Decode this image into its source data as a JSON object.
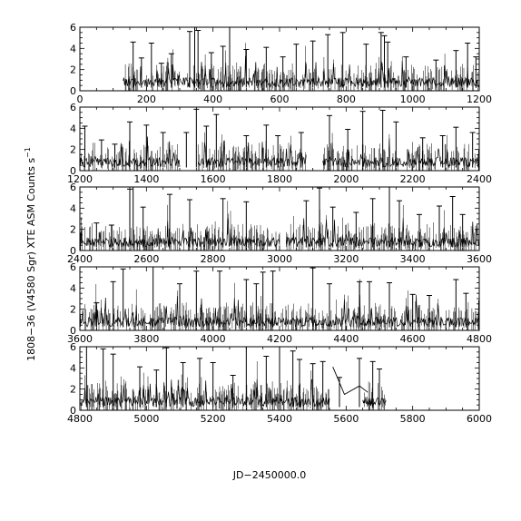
{
  "chart_data": {
    "type": "line",
    "ylabel": "1808−36 (V4580 Sgr) XTE ASM Counts s",
    "ylabel_superscript": "−1",
    "xlabel": "JD−2450000.0",
    "ylim": [
      0,
      6
    ],
    "yticks": [
      "0",
      "2",
      "4",
      "6"
    ],
    "error_bars": true,
    "grid": false,
    "color": "#000000",
    "panels": [
      {
        "xlim": [
          0,
          1200
        ],
        "xticks": [
          "0",
          "200",
          "400",
          "600",
          "800",
          "1000",
          "1200"
        ],
        "segments": [
          [
            130,
            1200
          ]
        ],
        "spikes": [
          [
            160,
            4.6
          ],
          [
            185,
            3.1
          ],
          [
            215,
            4.5
          ],
          [
            245,
            2.6
          ],
          [
            275,
            3.5
          ],
          [
            330,
            5.6
          ],
          [
            345,
            6
          ],
          [
            355,
            5.7
          ],
          [
            395,
            3.6
          ],
          [
            430,
            4.2
          ],
          [
            450,
            6
          ],
          [
            500,
            3.9
          ],
          [
            560,
            4.1
          ],
          [
            610,
            3.2
          ],
          [
            650,
            4.4
          ],
          [
            700,
            4.7
          ],
          [
            745,
            5.3
          ],
          [
            790,
            5.5
          ],
          [
            860,
            4.4
          ],
          [
            905,
            5.5
          ],
          [
            915,
            5.2
          ],
          [
            925,
            4.6
          ],
          [
            980,
            3.2
          ],
          [
            1070,
            2.9
          ],
          [
            1130,
            3.8
          ],
          [
            1165,
            4.5
          ],
          [
            1190,
            3.2
          ]
        ]
      },
      {
        "xlim": [
          1200,
          2400
        ],
        "xticks": [
          "1200",
          "1400",
          "1600",
          "1800",
          "2000",
          "2200",
          "2400"
        ],
        "segments": [
          [
            1200,
            1500
          ],
          [
            1555,
            1880
          ],
          [
            1930,
            2400
          ]
        ],
        "spikes": [
          [
            1215,
            4.2
          ],
          [
            1265,
            2.9
          ],
          [
            1305,
            2.5
          ],
          [
            1350,
            4.6
          ],
          [
            1400,
            4.3
          ],
          [
            1450,
            3.6
          ],
          [
            1520,
            3.6
          ],
          [
            1550,
            5.8
          ],
          [
            1580,
            4.2
          ],
          [
            1610,
            5.3
          ],
          [
            1700,
            3.3
          ],
          [
            1760,
            4.3
          ],
          [
            1795,
            3.3
          ],
          [
            1865,
            3.6
          ],
          [
            1950,
            5.2
          ],
          [
            2005,
            3.9
          ],
          [
            2050,
            5.6
          ],
          [
            2110,
            5.7
          ],
          [
            2150,
            4.6
          ],
          [
            2230,
            3.1
          ],
          [
            2290,
            3.3
          ],
          [
            2330,
            4.1
          ],
          [
            2380,
            3.6
          ]
        ]
      },
      {
        "xlim": [
          2400,
          3600
        ],
        "xticks": [
          "2400",
          "2600",
          "2800",
          "3000",
          "3200",
          "3400",
          "3600"
        ],
        "segments": [
          [
            2400,
            3000
          ],
          [
            3020,
            3600
          ]
        ],
        "spikes": [
          [
            2450,
            2.6
          ],
          [
            2495,
            2.4
          ],
          [
            2550,
            5.8
          ],
          [
            2560,
            6
          ],
          [
            2590,
            4.1
          ],
          [
            2670,
            5.3
          ],
          [
            2730,
            4.8
          ],
          [
            2830,
            4.9
          ],
          [
            2900,
            4.6
          ],
          [
            3080,
            4.7
          ],
          [
            3120,
            5.9
          ],
          [
            3160,
            4.1
          ],
          [
            3230,
            3.6
          ],
          [
            3280,
            4.9
          ],
          [
            3330,
            6
          ],
          [
            3360,
            4.7
          ],
          [
            3420,
            3.4
          ],
          [
            3480,
            4.2
          ],
          [
            3520,
            5.1
          ],
          [
            3550,
            3.4
          ]
        ]
      },
      {
        "xlim": [
          3600,
          4800
        ],
        "xticks": [
          "3600",
          "3800",
          "4000",
          "4200",
          "4400",
          "4600",
          "4800"
        ],
        "segments": [
          [
            3600,
            4800
          ]
        ],
        "spikes": [
          [
            3650,
            2.6
          ],
          [
            3700,
            4.6
          ],
          [
            3730,
            5.8
          ],
          [
            3820,
            6
          ],
          [
            3900,
            4.4
          ],
          [
            3950,
            5.6
          ],
          [
            4020,
            5.6
          ],
          [
            4100,
            4.8
          ],
          [
            4130,
            4.4
          ],
          [
            4150,
            5.5
          ],
          [
            4180,
            5.6
          ],
          [
            4300,
            5.9
          ],
          [
            4350,
            4.4
          ],
          [
            4440,
            4.6
          ],
          [
            4470,
            4.6
          ],
          [
            4530,
            4.5
          ],
          [
            4600,
            3.4
          ],
          [
            4650,
            3.3
          ],
          [
            4730,
            4.8
          ],
          [
            4760,
            3.5
          ]
        ]
      },
      {
        "xlim": [
          4800,
          6000
        ],
        "xticks": [
          "4800",
          "5000",
          "5200",
          "5400",
          "5600",
          "5800",
          "6000"
        ],
        "segments": [
          [
            4800,
            5550
          ],
          [
            5650,
            5720
          ]
        ],
        "spikes": [
          [
            4820,
            6
          ],
          [
            4870,
            5.8
          ],
          [
            4900,
            5.3
          ],
          [
            4980,
            4.1
          ],
          [
            5030,
            3.8
          ],
          [
            5060,
            5.9
          ],
          [
            5110,
            4.5
          ],
          [
            5160,
            4.9
          ],
          [
            5200,
            4.5
          ],
          [
            5260,
            3.3
          ],
          [
            5300,
            6
          ],
          [
            5360,
            5.1
          ],
          [
            5400,
            6
          ],
          [
            5440,
            5.6
          ],
          [
            5460,
            4.8
          ],
          [
            5500,
            4.4
          ],
          [
            5530,
            4.6
          ],
          [
            5580,
            3.1
          ],
          [
            5640,
            4.9
          ],
          [
            5680,
            4.6
          ],
          [
            5700,
            3.9
          ]
        ],
        "extra_line": [
          [
            5560,
            4.1
          ],
          [
            5595,
            1.5
          ],
          [
            5640,
            2.3
          ],
          [
            5665,
            1.7
          ]
        ]
      }
    ]
  }
}
